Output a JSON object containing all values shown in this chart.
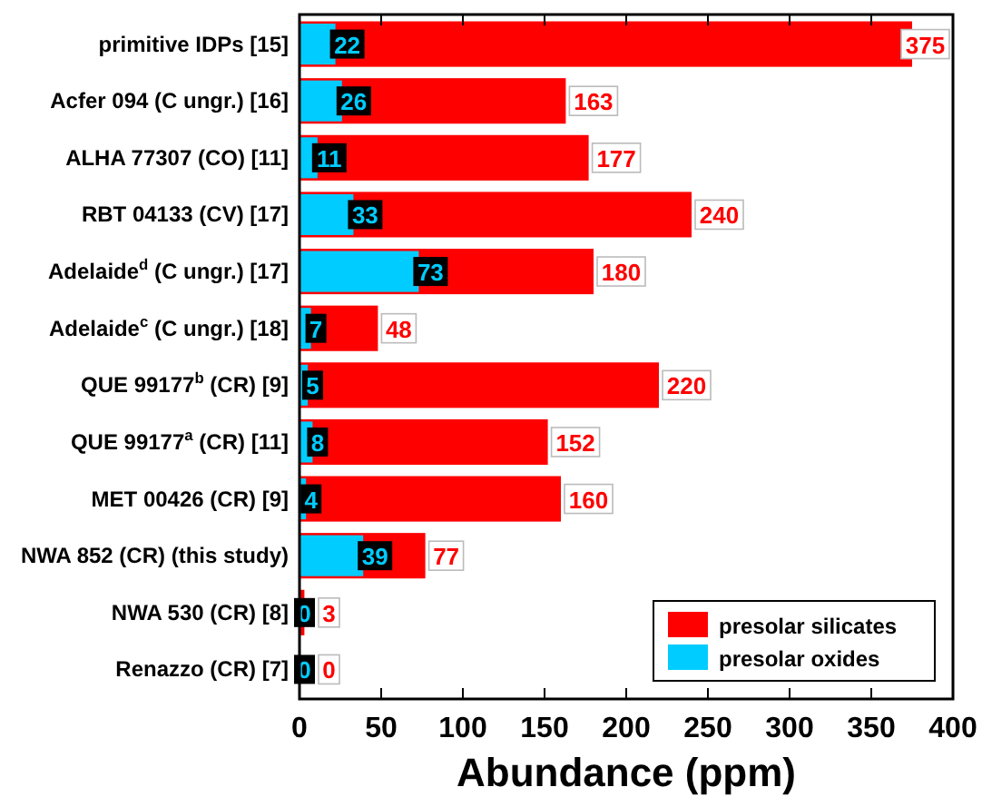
{
  "chart_data": {
    "type": "bar",
    "orientation": "horizontal",
    "xlabel": "Abundance (ppm)",
    "categories": [
      "primitive IDPs [15]",
      "Acfer 094 (C ungr.) [16]",
      "ALHA 77307 (CO) [11]",
      "RBT 04133 (CV) [17]",
      "Adelaide$^{d}$ (C ungr.) [17]",
      "Adelaide$^{c}$ (C ungr.) [18]",
      "QUE 99177$^{b}$ (CR) [9]",
      "QUE 99177$^{a}$ (CR) [11]",
      "MET 00426 (CR) [9]",
      "NWA 852 (CR) (this study)",
      "NWA 530 (CR) [8]",
      "Renazzo (CR) [7]"
    ],
    "series": [
      {
        "name": "presolar silicates",
        "color": "#ff0000",
        "values": [
          375,
          163,
          177,
          240,
          180,
          48,
          220,
          152,
          160,
          77,
          3,
          0
        ]
      },
      {
        "name": "presolar oxides",
        "color": "#00ccff",
        "values": [
          22,
          26,
          11,
          33,
          73,
          7,
          5,
          8,
          4,
          39,
          0,
          0
        ]
      }
    ],
    "xlim": [
      0,
      400
    ],
    "xticks": [
      0,
      50,
      100,
      150,
      200,
      250,
      300,
      350,
      400
    ],
    "data_labels": true,
    "legend": "bottom right",
    "grid": false
  }
}
